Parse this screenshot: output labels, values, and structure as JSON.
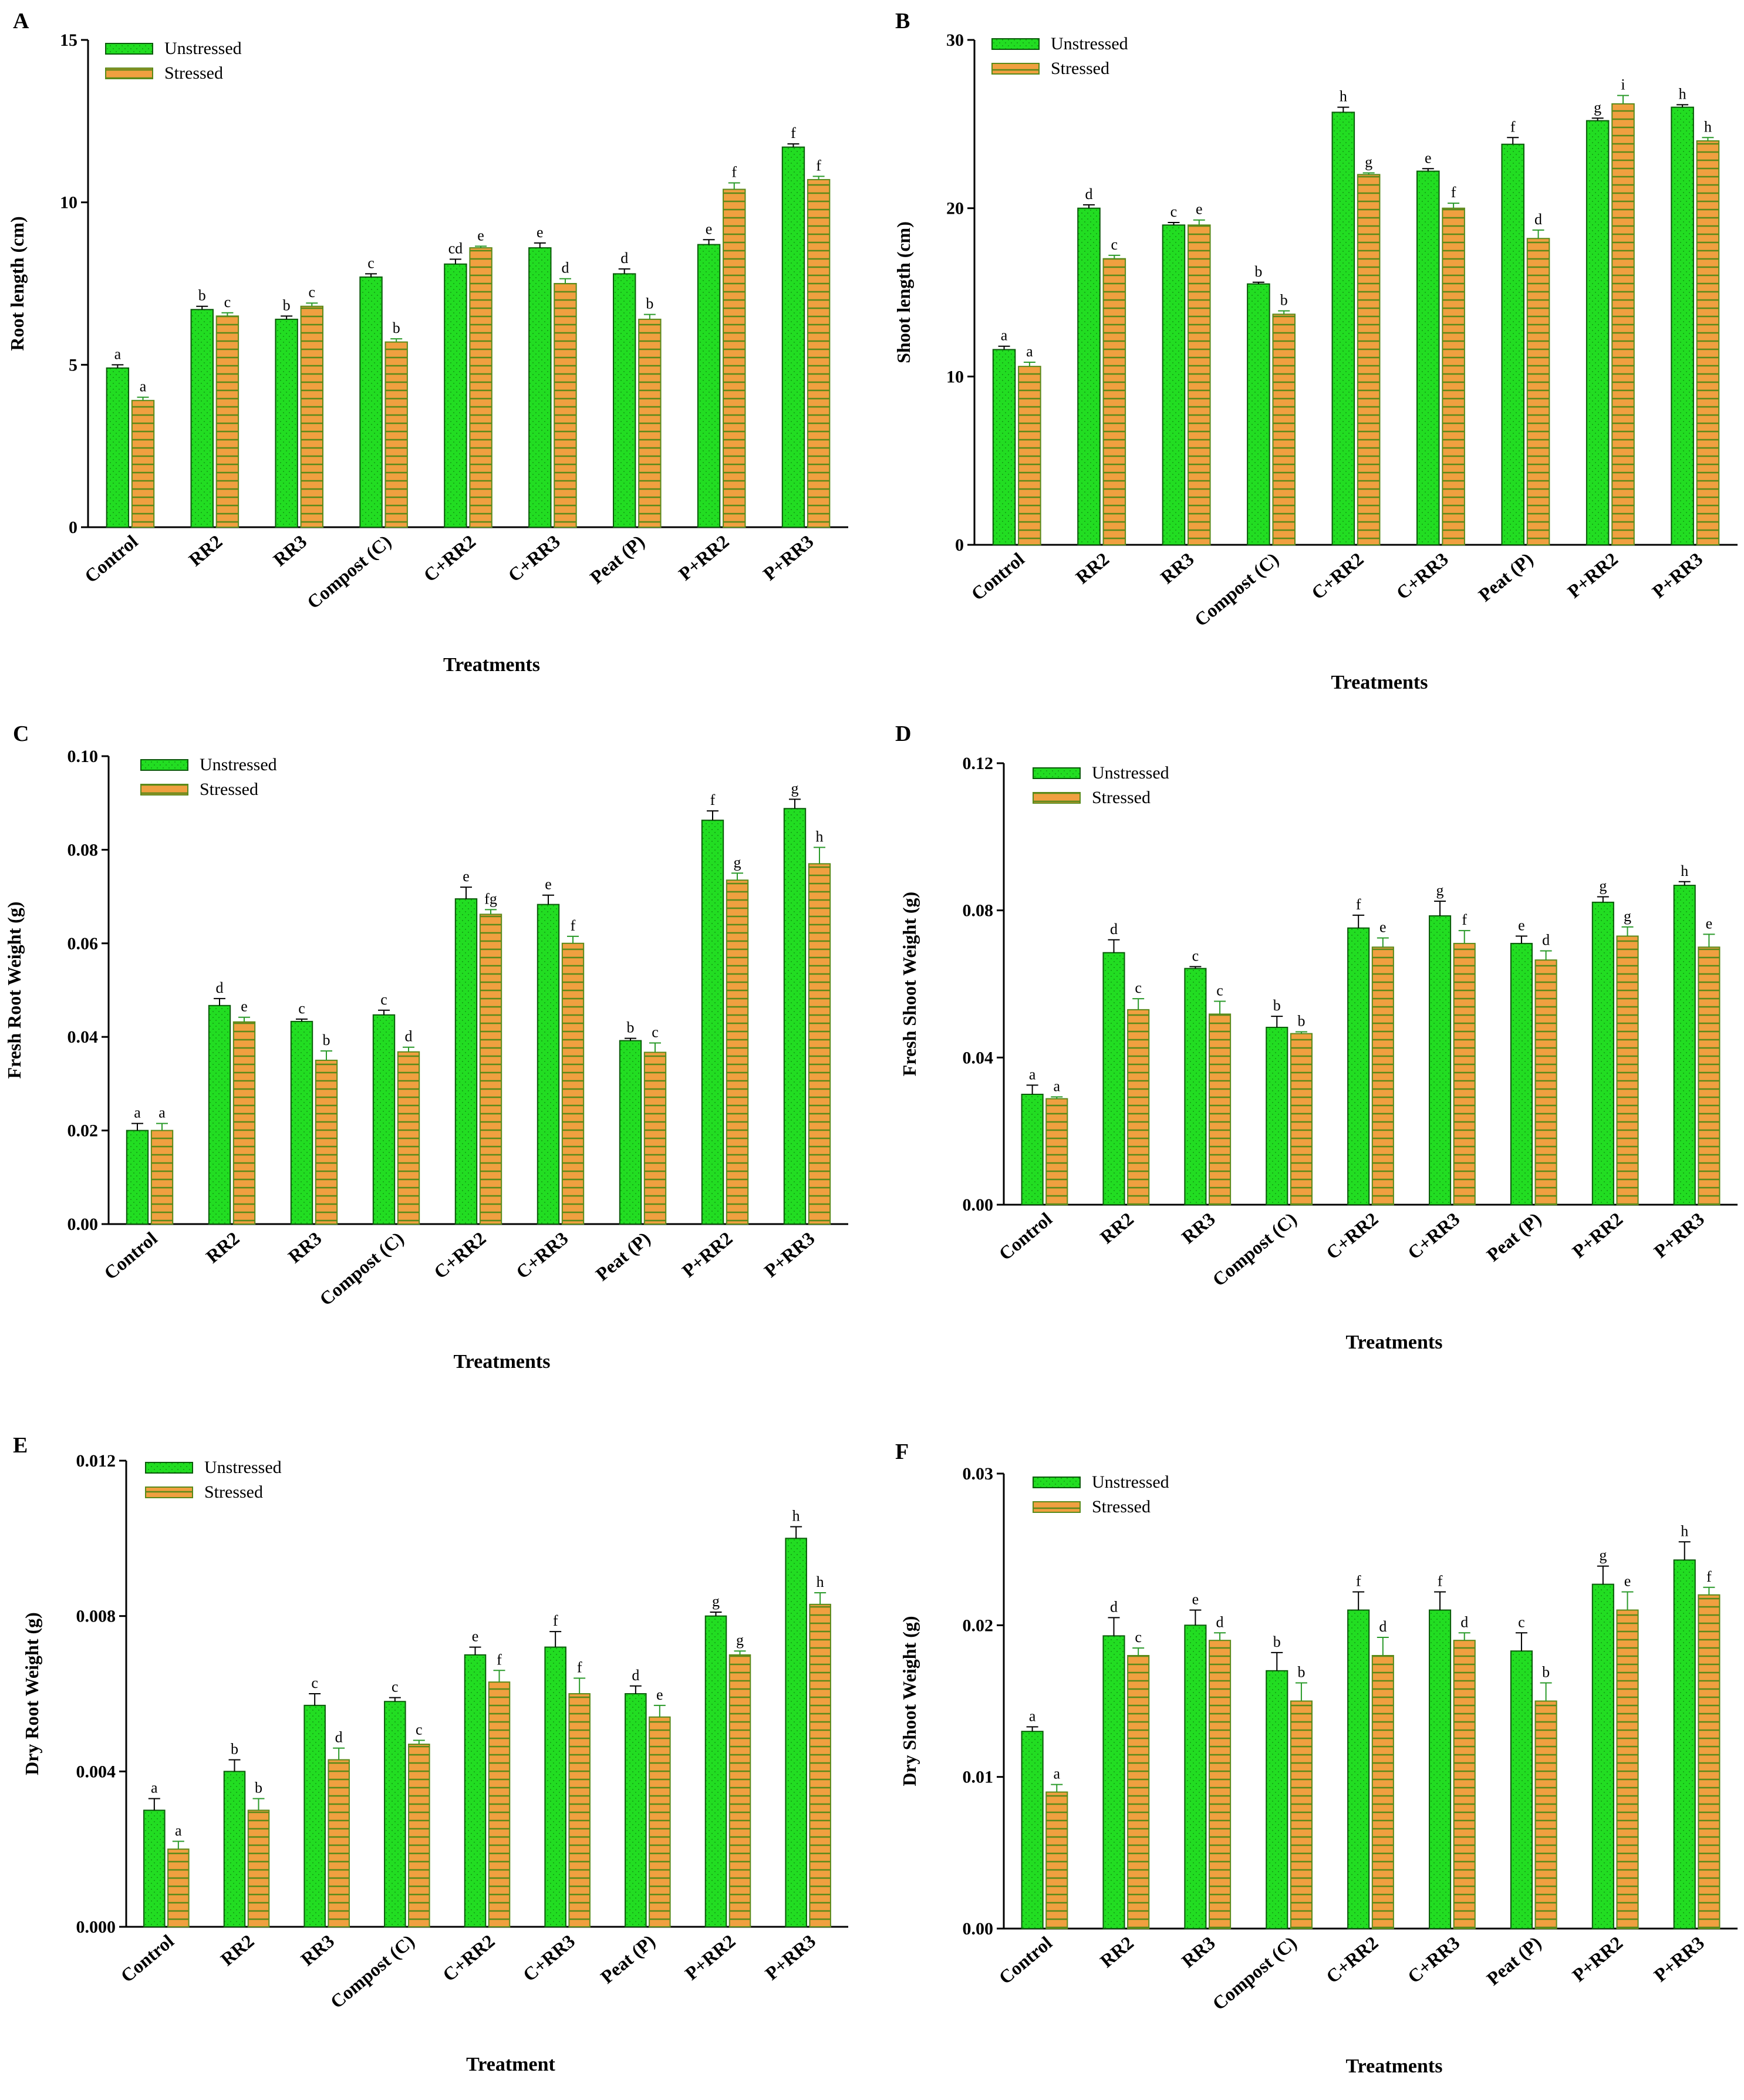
{
  "colors": {
    "unstressed": "#22dd22",
    "stressed": "#f0a040",
    "stressed_hatch": "#5a8a1a",
    "axis": "#000000"
  },
  "legend": {
    "unstressed": "Unstressed",
    "stressed": "Stressed"
  },
  "chart_data": [
    {
      "panel": "A",
      "type": "bar",
      "categories": [
        "Control",
        "RR2",
        "RR3",
        "Compost (C)",
        "C+RR2",
        "C+RR3",
        "Peat (P)",
        "P+RR2",
        "P+RR3"
      ],
      "ylabel": "Root length (cm)",
      "xlabel": "Treatments",
      "ylim": [
        0,
        15
      ],
      "yticks": [
        "0",
        "5",
        "10",
        "15"
      ],
      "series": [
        {
          "name": "Unstressed",
          "values": [
            4.9,
            6.7,
            6.4,
            7.7,
            8.1,
            8.6,
            7.8,
            8.7,
            11.7
          ],
          "errors": [
            0.1,
            0.1,
            0.1,
            0.1,
            0.15,
            0.15,
            0.15,
            0.15,
            0.1
          ],
          "labels": [
            "a",
            "b",
            "b",
            "c",
            "cd",
            "e",
            "d",
            "e",
            "f"
          ]
        },
        {
          "name": "Stressed",
          "values": [
            3.9,
            6.5,
            6.8,
            5.7,
            8.6,
            7.5,
            6.4,
            10.4,
            10.7
          ],
          "errors": [
            0.1,
            0.1,
            0.1,
            0.1,
            0.05,
            0.15,
            0.15,
            0.2,
            0.1
          ],
          "labels": [
            "a",
            "c",
            "c",
            "b",
            "e",
            "d",
            "b",
            "f",
            "f"
          ]
        }
      ]
    },
    {
      "panel": "B",
      "type": "bar",
      "categories": [
        "Control",
        "RR2",
        "RR3",
        "Compost (C)",
        "C+RR2",
        "C+RR3",
        "Peat (P)",
        "P+RR2",
        "P+RR3"
      ],
      "ylabel": "Shoot length (cm)",
      "xlabel": "Treatments",
      "ylim": [
        0,
        30
      ],
      "yticks": [
        "0",
        "10",
        "20",
        "30"
      ],
      "series": [
        {
          "name": "Unstressed",
          "values": [
            11.6,
            20.0,
            19.0,
            15.5,
            25.7,
            22.2,
            23.8,
            25.2,
            26.0
          ],
          "errors": [
            0.2,
            0.2,
            0.15,
            0.1,
            0.3,
            0.15,
            0.4,
            0.15,
            0.15
          ],
          "labels": [
            "a",
            "d",
            "c",
            "b",
            "h",
            "e",
            "f",
            "g",
            "h"
          ]
        },
        {
          "name": "Stressed",
          "values": [
            10.6,
            17.0,
            19.0,
            13.7,
            22.0,
            20.0,
            18.2,
            26.2,
            24.0
          ],
          "errors": [
            0.25,
            0.2,
            0.3,
            0.2,
            0.1,
            0.3,
            0.5,
            0.5,
            0.2
          ],
          "labels": [
            "a",
            "c",
            "e",
            "b",
            "g",
            "f",
            "d",
            "i",
            "h"
          ]
        }
      ]
    },
    {
      "panel": "C",
      "type": "bar",
      "categories": [
        "Control",
        "RR2",
        "RR3",
        "Compost (C)",
        "C+RR2",
        "C+RR3",
        "Peat (P)",
        "P+RR2",
        "P+RR3"
      ],
      "ylabel": "Fresh Root Weight (g)",
      "xlabel": "Treatments",
      "ylim": [
        0,
        0.1
      ],
      "yticks": [
        "0.00",
        "0.02",
        "0.04",
        "0.06",
        "0.08",
        "0.10"
      ],
      "series": [
        {
          "name": "Unstressed",
          "values": [
            0.02,
            0.0467,
            0.0433,
            0.0447,
            0.0695,
            0.0683,
            0.0392,
            0.0863,
            0.0888
          ],
          "errors": [
            0.0015,
            0.0015,
            0.0005,
            0.001,
            0.0025,
            0.002,
            0.0005,
            0.002,
            0.002
          ],
          "labels": [
            "a",
            "d",
            "c",
            "c",
            "e",
            "e",
            "b",
            "f",
            "g"
          ]
        },
        {
          "name": "Stressed",
          "values": [
            0.02,
            0.0432,
            0.035,
            0.0368,
            0.0662,
            0.06,
            0.0367,
            0.0735,
            0.077
          ],
          "errors": [
            0.0015,
            0.001,
            0.002,
            0.001,
            0.001,
            0.0015,
            0.002,
            0.0015,
            0.0035
          ],
          "labels": [
            "a",
            "e",
            "b",
            "d",
            "fg",
            "f",
            "c",
            "g",
            "h"
          ]
        }
      ]
    },
    {
      "panel": "D",
      "type": "bar",
      "categories": [
        "Control",
        "RR2",
        "RR3",
        "Compost (C)",
        "C+RR2",
        "C+RR3",
        "Peat (P)",
        "P+RR2",
        "P+RR3"
      ],
      "ylabel": "Fresh Shoot Weight (g)",
      "xlabel": "Treatments",
      "ylim": [
        0,
        0.12
      ],
      "yticks": [
        "0.00",
        "0.04",
        "0.08",
        "0.12"
      ],
      "series": [
        {
          "name": "Unstressed",
          "values": [
            0.03,
            0.0685,
            0.0642,
            0.0482,
            0.0752,
            0.0785,
            0.071,
            0.0822,
            0.0868
          ],
          "errors": [
            0.0025,
            0.0035,
            0.0005,
            0.003,
            0.0035,
            0.004,
            0.002,
            0.0015,
            0.001
          ],
          "labels": [
            "a",
            "d",
            "c",
            "b",
            "f",
            "g",
            "e",
            "g",
            "h"
          ]
        },
        {
          "name": "Stressed",
          "values": [
            0.0288,
            0.053,
            0.0518,
            0.0465,
            0.07,
            0.071,
            0.0665,
            0.073,
            0.07
          ],
          "errors": [
            0.0005,
            0.003,
            0.0035,
            0.0005,
            0.0025,
            0.0035,
            0.0025,
            0.0025,
            0.0035
          ],
          "labels": [
            "a",
            "c",
            "c",
            "b",
            "e",
            "f",
            "d",
            "g",
            "e"
          ]
        }
      ]
    },
    {
      "panel": "E",
      "type": "bar",
      "categories": [
        "Control",
        "RR2",
        "RR3",
        "Compost (C)",
        "C+RR2",
        "C+RR3",
        "Peat (P)",
        "P+RR2",
        "P+RR3"
      ],
      "ylabel": "Dry Root Weight (g)",
      "xlabel": "Treatment",
      "ylim": [
        0,
        0.012
      ],
      "yticks": [
        "0.000",
        "0.004",
        "0.008",
        "0.012"
      ],
      "series": [
        {
          "name": "Unstressed",
          "values": [
            0.003,
            0.004,
            0.0057,
            0.0058,
            0.007,
            0.0072,
            0.006,
            0.008,
            0.01
          ],
          "errors": [
            0.0003,
            0.0003,
            0.0003,
            0.0001,
            0.0002,
            0.0004,
            0.0002,
            0.0001,
            0.0003
          ],
          "labels": [
            "a",
            "b",
            "c",
            "c",
            "e",
            "f",
            "d",
            "g",
            "h"
          ]
        },
        {
          "name": "Stressed",
          "values": [
            0.002,
            0.003,
            0.0043,
            0.0047,
            0.0063,
            0.006,
            0.0054,
            0.007,
            0.0083
          ],
          "errors": [
            0.0002,
            0.0003,
            0.0003,
            0.0001,
            0.0003,
            0.0004,
            0.0003,
            0.0001,
            0.0003
          ],
          "labels": [
            "a",
            "b",
            "d",
            "c",
            "f",
            "f",
            "e",
            "g",
            "h"
          ]
        }
      ]
    },
    {
      "panel": "F",
      "type": "bar",
      "categories": [
        "Control",
        "RR2",
        "RR3",
        "Compost (C)",
        "C+RR2",
        "C+RR3",
        "Peat (P)",
        "P+RR2",
        "P+RR3"
      ],
      "ylabel": "Dry Shoot Weight (g)",
      "xlabel": "Treatments",
      "ylim": [
        0,
        0.03
      ],
      "yticks": [
        "0.00",
        "0.01",
        "0.02",
        "0.03"
      ],
      "series": [
        {
          "name": "Unstressed",
          "values": [
            0.013,
            0.0193,
            0.02,
            0.017,
            0.021,
            0.021,
            0.0183,
            0.0227,
            0.0243
          ],
          "errors": [
            0.0003,
            0.0012,
            0.001,
            0.0012,
            0.0012,
            0.0012,
            0.0012,
            0.0012,
            0.0012
          ],
          "labels": [
            "a",
            "d",
            "e",
            "b",
            "f",
            "f",
            "c",
            "g",
            "h"
          ]
        },
        {
          "name": "Stressed",
          "values": [
            0.009,
            0.018,
            0.019,
            0.015,
            0.018,
            0.019,
            0.015,
            0.021,
            0.022
          ],
          "errors": [
            0.0005,
            0.0005,
            0.0005,
            0.0012,
            0.0012,
            0.0005,
            0.0012,
            0.0012,
            0.0005
          ],
          "labels": [
            "a",
            "c",
            "d",
            "b",
            "d",
            "d",
            "b",
            "e",
            "f"
          ]
        }
      ]
    }
  ]
}
